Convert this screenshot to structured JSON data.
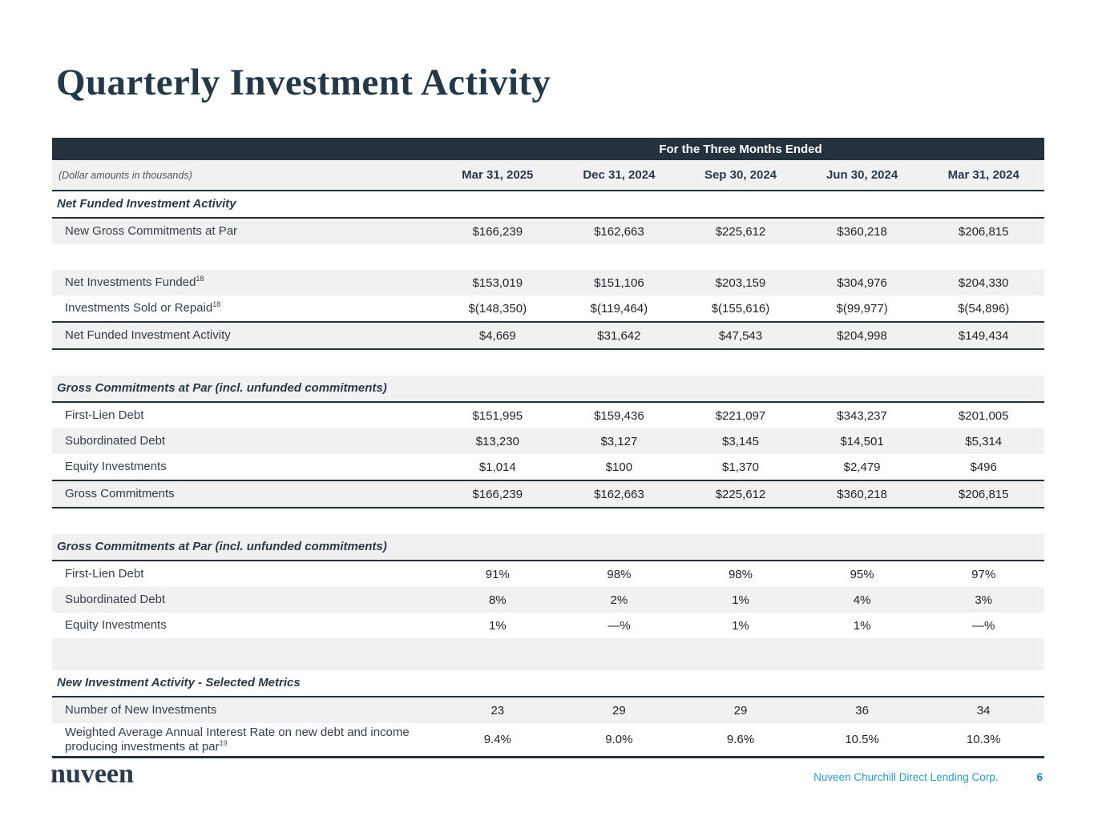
{
  "page": {
    "title": "Quarterly Investment Activity"
  },
  "colors": {
    "navy": "#25323E",
    "navy_text": "#253847",
    "stripe": "#F1F1F2",
    "accent_blue": "#2A9BCE",
    "page_blue": "#1E7FB8"
  },
  "table": {
    "period_banner": "For the Three Months Ended",
    "unit_note": "(Dollar amounts in thousands)",
    "columns": [
      "Mar 31, 2025",
      "Dec 31, 2024",
      "Sep 30, 2024",
      "Jun 30, 2024",
      "Mar 31, 2024"
    ],
    "rows": [
      {
        "type": "section",
        "label": "Net Funded Investment Activity"
      },
      {
        "type": "data",
        "shaded": true,
        "label": "New Gross Commitments at Par",
        "values": [
          "$166,239",
          "$162,663",
          "$225,612",
          "$360,218",
          "$206,815"
        ]
      },
      {
        "type": "spacer"
      },
      {
        "type": "data",
        "shaded": true,
        "label": "Net Investments Funded",
        "sup": "18",
        "values": [
          "$153,019",
          "$151,106",
          "$203,159",
          "$304,976",
          "$204,330"
        ]
      },
      {
        "type": "data",
        "label": "Investments Sold or Repaid",
        "sup": "18",
        "values": [
          "$(148,350)",
          "$(119,464)",
          "$(155,616)",
          "$(99,977)",
          "$(54,896)"
        ]
      },
      {
        "type": "total",
        "shaded": true,
        "label": "Net Funded Investment Activity",
        "values": [
          "$4,669",
          "$31,642",
          "$47,543",
          "$204,998",
          "$149,434"
        ]
      },
      {
        "type": "spacer"
      },
      {
        "type": "section",
        "shaded": true,
        "label": "Gross Commitments at Par (incl. unfunded commitments)"
      },
      {
        "type": "data",
        "label": "First-Lien Debt",
        "values": [
          "$151,995",
          "$159,436",
          "$221,097",
          "$343,237",
          "$201,005"
        ]
      },
      {
        "type": "data",
        "shaded": true,
        "label": "Subordinated Debt",
        "values": [
          "$13,230",
          "$3,127",
          "$3,145",
          "$14,501",
          "$5,314"
        ]
      },
      {
        "type": "data",
        "label": "Equity Investments",
        "values": [
          "$1,014",
          "$100",
          "$1,370",
          "$2,479",
          "$496"
        ]
      },
      {
        "type": "total",
        "shaded": true,
        "label": "Gross Commitments",
        "values": [
          "$166,239",
          "$162,663",
          "$225,612",
          "$360,218",
          "$206,815"
        ]
      },
      {
        "type": "spacer"
      },
      {
        "type": "section",
        "shaded": true,
        "label": "Gross Commitments at Par (incl. unfunded commitments)"
      },
      {
        "type": "data",
        "label": "First-Lien Debt",
        "values": [
          "91%",
          "98%",
          "98%",
          "95%",
          "97%"
        ]
      },
      {
        "type": "data",
        "shaded": true,
        "label": "Subordinated Debt",
        "values": [
          "8%",
          "2%",
          "1%",
          "4%",
          "3%"
        ]
      },
      {
        "type": "data",
        "label": "Equity Investments",
        "values": [
          "1%",
          "—%",
          "1%",
          "1%",
          "—%"
        ]
      },
      {
        "type": "spacer",
        "shaded": true,
        "tall": true
      },
      {
        "type": "section",
        "label": "New Investment Activity - Selected Metrics"
      },
      {
        "type": "data",
        "shaded": true,
        "label": "Number of New Investments",
        "values": [
          "23",
          "29",
          "29",
          "36",
          "34"
        ]
      },
      {
        "type": "data",
        "tall": true,
        "label": "Weighted Average Annual Interest Rate on new debt and income producing investments at par",
        "sup": "19",
        "values": [
          "9.4%",
          "9.0%",
          "9.6%",
          "10.5%",
          "10.3%"
        ]
      }
    ]
  },
  "footer": {
    "logo": "nuveen",
    "company": "Nuveen Churchill Direct Lending Corp.",
    "page_number": "6"
  }
}
